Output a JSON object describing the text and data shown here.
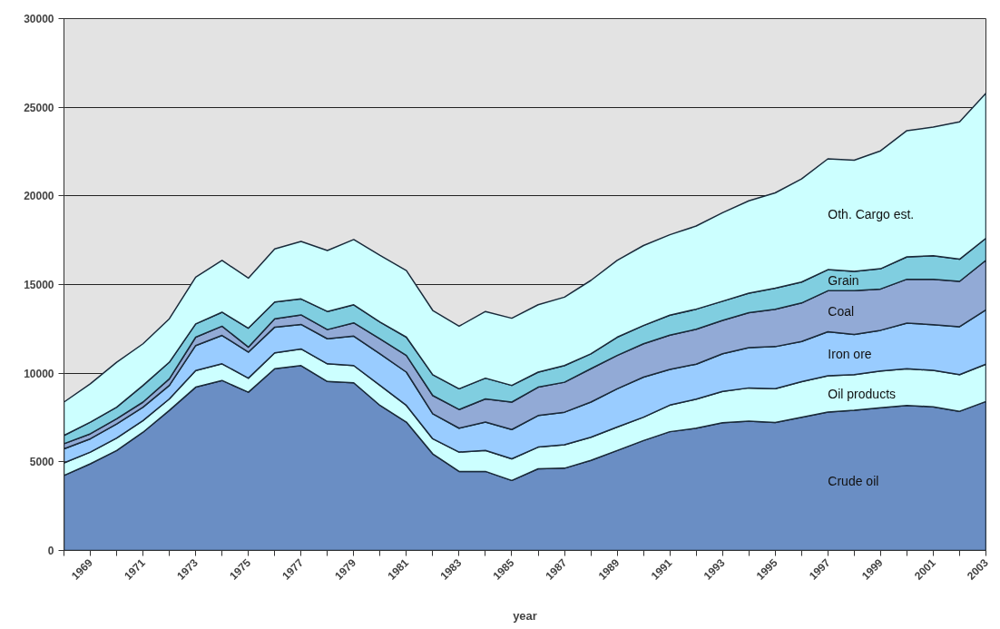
{
  "chart_data": {
    "type": "area",
    "stacked": true,
    "xlabel": "year",
    "x": [
      1968,
      1969,
      1970,
      1971,
      1972,
      1973,
      1974,
      1975,
      1976,
      1977,
      1978,
      1979,
      1980,
      1981,
      1982,
      1983,
      1984,
      1985,
      1986,
      1987,
      1988,
      1989,
      1990,
      1991,
      1992,
      1993,
      1994,
      1995,
      1996,
      1997,
      1998,
      1999,
      2000,
      2001,
      2002,
      2003
    ],
    "series": [
      {
        "name": "Crude oil",
        "color": "#6a8ec4",
        "values": [
          4230,
          4890,
          5640,
          6670,
          7900,
          9210,
          9590,
          8930,
          10250,
          10430,
          9530,
          9460,
          8180,
          7240,
          5450,
          4460,
          4460,
          3950,
          4610,
          4640,
          5080,
          5640,
          6200,
          6700,
          6900,
          7200,
          7300,
          7220,
          7510,
          7810,
          7910,
          8050,
          8180,
          8100,
          7850,
          8400
        ]
      },
      {
        "name": "Oil products",
        "color": "#ccffff",
        "values": [
          710,
          660,
          700,
          660,
          650,
          940,
          940,
          790,
          900,
          940,
          1000,
          970,
          1130,
          940,
          850,
          1090,
          1180,
          1220,
          1220,
          1320,
          1310,
          1320,
          1320,
          1500,
          1640,
          1770,
          1870,
          1910,
          2010,
          2050,
          2010,
          2070,
          2070,
          2060,
          2070,
          2110
        ]
      },
      {
        "name": "Iron ore",
        "color": "#99ccff",
        "values": [
          790,
          750,
          800,
          750,
          760,
          1410,
          1600,
          1470,
          1450,
          1380,
          1410,
          1660,
          1780,
          1880,
          1410,
          1350,
          1600,
          1650,
          1780,
          1840,
          1980,
          2160,
          2260,
          2010,
          1970,
          2130,
          2270,
          2370,
          2270,
          2480,
          2270,
          2300,
          2570,
          2580,
          2700,
          3060
        ]
      },
      {
        "name": "Coal",
        "color": "#92aad6",
        "values": [
          290,
          280,
          290,
          290,
          370,
          470,
          520,
          280,
          470,
          540,
          520,
          750,
          850,
          940,
          1030,
          1050,
          1310,
          1550,
          1600,
          1690,
          1880,
          1880,
          1880,
          1940,
          1970,
          1880,
          1970,
          2110,
          2170,
          2310,
          2460,
          2330,
          2480,
          2560,
          2560,
          2800
        ]
      },
      {
        "name": "Grain",
        "color": "#80cee0",
        "values": [
          470,
          660,
          650,
          940,
          940,
          750,
          790,
          1070,
          940,
          900,
          1020,
          1020,
          940,
          1030,
          1170,
          1170,
          1170,
          940,
          850,
          940,
          840,
          1030,
          1030,
          1120,
          1130,
          1080,
          1100,
          1180,
          1180,
          1190,
          1090,
          1140,
          1260,
          1320,
          1250,
          1240
        ]
      },
      {
        "name": "Oth. Cargo est.",
        "color": "#ccffff",
        "values": [
          1880,
          2160,
          2540,
          2350,
          2450,
          2640,
          2920,
          2820,
          3000,
          3240,
          3440,
          3680,
          3760,
          3760,
          3630,
          3530,
          3760,
          3790,
          3800,
          3860,
          4140,
          4330,
          4510,
          4540,
          4690,
          4990,
          5210,
          5380,
          5820,
          6250,
          6270,
          6650,
          7120,
          7260,
          7750,
          8180
        ]
      }
    ],
    "xlim": [
      1968,
      2003
    ],
    "xticks": [
      {
        "value": 1968,
        "label": null
      },
      1969,
      {
        "value": 1970,
        "label": null
      },
      1971,
      {
        "value": 1972,
        "label": null
      },
      1973,
      {
        "value": 1974,
        "label": null
      },
      1975,
      {
        "value": 1976,
        "label": null
      },
      1977,
      {
        "value": 1978,
        "label": null
      },
      1979,
      {
        "value": 1980,
        "label": null
      },
      1981,
      {
        "value": 1982,
        "label": null
      },
      1983,
      {
        "value": 1984,
        "label": null
      },
      1985,
      {
        "value": 1986,
        "label": null
      },
      1987,
      {
        "value": 1988,
        "label": null
      },
      1989,
      {
        "value": 1990,
        "label": null
      },
      1991,
      {
        "value": 1992,
        "label": null
      },
      1993,
      {
        "value": 1994,
        "label": null
      },
      1995,
      {
        "value": 1996,
        "label": null
      },
      1997,
      {
        "value": 1998,
        "label": null
      },
      1999,
      {
        "value": 2000,
        "label": null
      },
      2001,
      {
        "value": 2002,
        "label": null
      },
      2003
    ],
    "ylim": [
      0,
      30000
    ],
    "yticks": [
      0,
      5000,
      10000,
      15000,
      20000,
      25000,
      30000
    ],
    "grid": "y"
  }
}
